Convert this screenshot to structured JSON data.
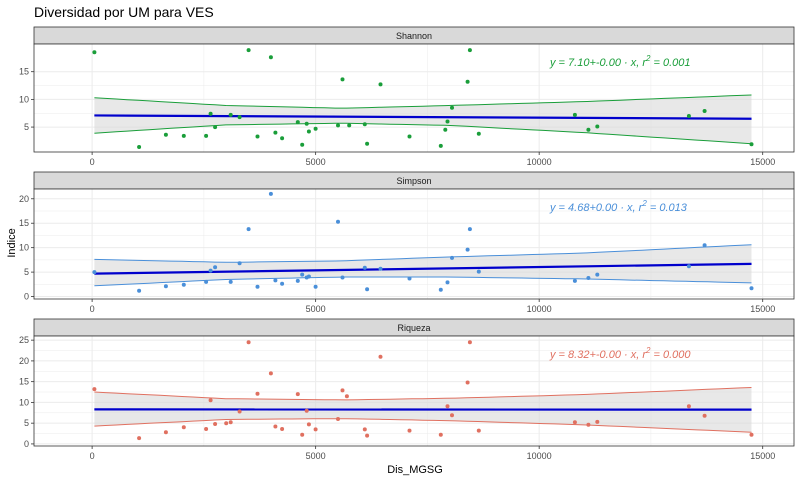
{
  "title": "Diversidad por UM para VES",
  "xlabel": "Dis_MGSG",
  "ylabel": "Indice",
  "x_ticks": [
    0,
    5000,
    10000,
    15000
  ],
  "x_tick_labels": [
    "0",
    "5000",
    "10000",
    "15000"
  ],
  "colors": {
    "strip_bg": "#d9d9d9",
    "panel_bg": "#ffffff",
    "grid": "#ebebeb",
    "border": "#333333",
    "fit_line": "#0000cc",
    "ribbon": "#d9d9d9"
  },
  "chart_data": [
    {
      "type": "scatter",
      "panel": "Shannon",
      "title": "Shannon",
      "color": "#1a9e3a",
      "xlim": [
        -1300,
        15700
      ],
      "ylim": [
        0.5,
        20
      ],
      "y_ticks": [
        5,
        10,
        15
      ],
      "equation": {
        "prefix": "y = 7.10+-0.00 · x,  r",
        "sup": "2",
        "suffix": " = 0.001"
      },
      "fit": {
        "intercept": 7.1,
        "slope": -4e-05
      },
      "band_x": [
        50,
        3000,
        5600,
        8000,
        11000,
        14750
      ],
      "band_upper": [
        10.3,
        8.9,
        8.4,
        8.9,
        9.6,
        10.8
      ],
      "band_lower": [
        3.9,
        5.4,
        5.7,
        5.3,
        4.0,
        2.0
      ],
      "points": [
        [
          50,
          18.5
        ],
        [
          1050,
          1.4
        ],
        [
          1650,
          3.6
        ],
        [
          2050,
          3.4
        ],
        [
          2550,
          3.4
        ],
        [
          2650,
          7.4
        ],
        [
          2750,
          5.0
        ],
        [
          3100,
          7.2
        ],
        [
          3300,
          6.8
        ],
        [
          3500,
          18.9
        ],
        [
          3700,
          3.3
        ],
        [
          4000,
          17.6
        ],
        [
          4100,
          4.0
        ],
        [
          4250,
          3.0
        ],
        [
          4600,
          5.9
        ],
        [
          4700,
          1.8
        ],
        [
          4800,
          5.6
        ],
        [
          4850,
          4.2
        ],
        [
          5000,
          4.7
        ],
        [
          5500,
          5.3
        ],
        [
          5600,
          13.6
        ],
        [
          5750,
          5.3
        ],
        [
          6100,
          5.5
        ],
        [
          6150,
          2.0
        ],
        [
          6450,
          12.7
        ],
        [
          7100,
          3.3
        ],
        [
          7800,
          1.6
        ],
        [
          7900,
          4.5
        ],
        [
          7950,
          6.0
        ],
        [
          8050,
          8.5
        ],
        [
          8400,
          13.2
        ],
        [
          8450,
          18.9
        ],
        [
          8650,
          3.8
        ],
        [
          10800,
          7.2
        ],
        [
          11100,
          4.5
        ],
        [
          11300,
          5.1
        ],
        [
          13350,
          7.0
        ],
        [
          13700,
          7.9
        ],
        [
          14750,
          1.9
        ]
      ]
    },
    {
      "type": "scatter",
      "panel": "Simpson",
      "title": "Simpson",
      "color": "#4a8fd9",
      "xlim": [
        -1300,
        15700
      ],
      "ylim": [
        -0.5,
        22
      ],
      "y_ticks": [
        0,
        5,
        10,
        15,
        20
      ],
      "equation": {
        "prefix": "y = 4.68+0.00 · x,  r",
        "sup": "2",
        "suffix": " = 0.013"
      },
      "fit": {
        "intercept": 4.68,
        "slope": 0.000136
      },
      "band_x": [
        50,
        3000,
        5600,
        8000,
        11000,
        14750
      ],
      "band_upper": [
        7.6,
        7.0,
        7.3,
        8.1,
        8.9,
        10.6
      ],
      "band_lower": [
        2.2,
        3.5,
        4.0,
        4.0,
        3.6,
        2.8
      ],
      "points": [
        [
          50,
          5.0
        ],
        [
          1050,
          1.2
        ],
        [
          1650,
          2.1
        ],
        [
          2050,
          2.4
        ],
        [
          2550,
          3.0
        ],
        [
          2650,
          5.3
        ],
        [
          2750,
          6.0
        ],
        [
          3100,
          3.0
        ],
        [
          3300,
          6.8
        ],
        [
          3500,
          13.8
        ],
        [
          3700,
          2.0
        ],
        [
          4000,
          21.0
        ],
        [
          4100,
          3.3
        ],
        [
          4250,
          2.6
        ],
        [
          4600,
          3.2
        ],
        [
          4700,
          4.5
        ],
        [
          4800,
          3.9
        ],
        [
          4850,
          4.1
        ],
        [
          5000,
          2.0
        ],
        [
          5500,
          15.3
        ],
        [
          5600,
          3.9
        ],
        [
          6100,
          5.9
        ],
        [
          6150,
          1.5
        ],
        [
          6450,
          5.7
        ],
        [
          7100,
          3.7
        ],
        [
          7800,
          1.4
        ],
        [
          7950,
          2.9
        ],
        [
          8050,
          7.9
        ],
        [
          8400,
          9.6
        ],
        [
          8450,
          13.8
        ],
        [
          8650,
          5.1
        ],
        [
          10800,
          3.2
        ],
        [
          11100,
          3.8
        ],
        [
          11300,
          4.5
        ],
        [
          13350,
          6.2
        ],
        [
          13700,
          10.5
        ],
        [
          14750,
          1.7
        ]
      ]
    },
    {
      "type": "scatter",
      "panel": "Riqueza",
      "title": "Riqueza",
      "color": "#e07060",
      "xlim": [
        -1300,
        15700
      ],
      "ylim": [
        -0.5,
        26
      ],
      "y_ticks": [
        0,
        5,
        10,
        15,
        20,
        25
      ],
      "equation": {
        "prefix": "y = 8.32+-0.00 · x,  r",
        "sup": "2",
        "suffix": " = 0.000"
      },
      "fit": {
        "intercept": 8.32,
        "slope": -4e-06
      },
      "band_x": [
        50,
        3000,
        5600,
        8000,
        11000,
        14750
      ],
      "band_upper": [
        12.5,
        10.9,
        10.6,
        11.0,
        11.9,
        13.6
      ],
      "band_lower": [
        4.3,
        5.9,
        6.1,
        5.6,
        4.6,
        2.8
      ],
      "points": [
        [
          50,
          13.2
        ],
        [
          1050,
          1.4
        ],
        [
          1650,
          2.8
        ],
        [
          2050,
          4.0
        ],
        [
          2550,
          3.6
        ],
        [
          2650,
          10.5
        ],
        [
          2750,
          4.8
        ],
        [
          3000,
          5.0
        ],
        [
          3100,
          5.2
        ],
        [
          3300,
          7.8
        ],
        [
          3500,
          24.5
        ],
        [
          3700,
          12.1
        ],
        [
          4000,
          17.0
        ],
        [
          4100,
          4.2
        ],
        [
          4250,
          3.6
        ],
        [
          4600,
          12.0
        ],
        [
          4700,
          2.2
        ],
        [
          4800,
          8.0
        ],
        [
          4850,
          4.7
        ],
        [
          5000,
          3.5
        ],
        [
          5500,
          6.0
        ],
        [
          5600,
          12.9
        ],
        [
          5700,
          11.5
        ],
        [
          6100,
          3.5
        ],
        [
          6150,
          2.0
        ],
        [
          6450,
          21.0
        ],
        [
          7100,
          3.2
        ],
        [
          7800,
          2.2
        ],
        [
          7950,
          9.1
        ],
        [
          8050,
          6.9
        ],
        [
          8400,
          14.8
        ],
        [
          8450,
          24.5
        ],
        [
          8650,
          3.2
        ],
        [
          10800,
          5.2
        ],
        [
          11100,
          4.6
        ],
        [
          11300,
          5.3
        ],
        [
          13350,
          9.1
        ],
        [
          13700,
          6.8
        ],
        [
          14750,
          2.2
        ]
      ]
    }
  ]
}
